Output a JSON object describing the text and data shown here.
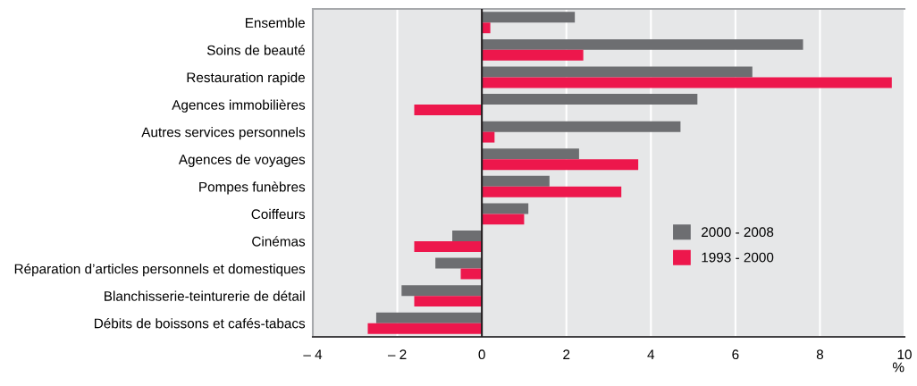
{
  "chart_data": {
    "type": "bar",
    "orientation": "horizontal",
    "categories": [
      "Ensemble",
      "Soins de beauté",
      "Restauration rapide",
      "Agences immobilières",
      "Autres services personnels",
      "Agences de voyages",
      "Pompes funèbres",
      "Coiffeurs",
      "Cinémas",
      "Réparation d’articles personnels et domestiques",
      "Blanchisserie-teinturerie de détail",
      "Débits de boissons et cafés-tabacs"
    ],
    "series": [
      {
        "name": "2000 - 2008",
        "color": "#6d6e71",
        "values": [
          2.2,
          7.6,
          6.4,
          5.1,
          4.7,
          2.3,
          1.6,
          1.1,
          -0.7,
          -1.1,
          -1.9,
          -2.5
        ]
      },
      {
        "name": "1993 - 2000",
        "color": "#ed174c",
        "values": [
          0.2,
          2.4,
          9.7,
          -1.6,
          0.3,
          3.7,
          3.3,
          1.0,
          -1.6,
          -0.5,
          -1.6,
          -2.7
        ]
      }
    ],
    "xlabel": "%",
    "xlim": [
      -4,
      10
    ],
    "xticks": [
      {
        "value": -4,
        "label": "– 4"
      },
      {
        "value": -2,
        "label": "– 2"
      },
      0,
      2,
      4,
      6,
      8,
      10
    ],
    "ref_lines": [
      {
        "axis": "x",
        "value": 0,
        "color": "#231f20"
      }
    ],
    "grid": "x",
    "legend": "right"
  }
}
